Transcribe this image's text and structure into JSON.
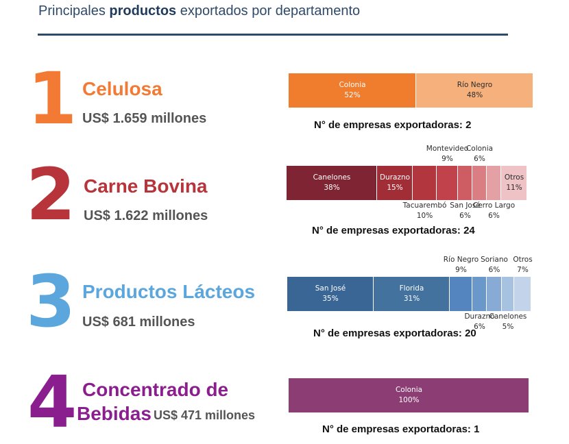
{
  "header": {
    "title_prefix": "Principales ",
    "title_bold": "productos",
    "title_suffix": " exportados por departamento"
  },
  "colors": {
    "header": "#2e4a6b",
    "p1": "#f37a35",
    "p2": "#b7343a",
    "p3": "#5ba6dd",
    "p4": "#8b1e8f"
  },
  "products": [
    {
      "rank": "1",
      "name": "Celulosa",
      "value": "US$ 1.659 millones",
      "count_label": "N° de empresas exportadoras: 2"
    },
    {
      "rank": "2",
      "name": "Carne Bovina",
      "value": "US$ 1.622 millones",
      "count_label": "N° de empresas exportadoras: 24"
    },
    {
      "rank": "3",
      "name": "Productos Lácteos",
      "value": "US$ 681 millones",
      "count_label": "N° de empresas exportadoras: 20"
    },
    {
      "rank": "4",
      "name_line1": "Concentrado de",
      "name_line2": "Bebidas",
      "value": "US$ 471 millones",
      "count_label": "N° de empresas exportadoras: 1"
    }
  ],
  "chart_data": [
    {
      "type": "bar",
      "stacked": true,
      "title": "Celulosa",
      "categories": [
        "Colonia",
        "Río Negro"
      ],
      "values": [
        52,
        48
      ],
      "labels": [
        "52%",
        "48%"
      ],
      "colors": [
        "#f07c2e",
        "#f5b07c"
      ]
    },
    {
      "type": "bar",
      "stacked": true,
      "title": "Carne Bovina",
      "categories": [
        "Canelones",
        "Durazno",
        "Tacuarembó",
        "Montevideo",
        "San José",
        "Colonia",
        "Cerro Largo",
        "Otros"
      ],
      "values": [
        38,
        15,
        10,
        9,
        6,
        6,
        6,
        11
      ],
      "labels": [
        "38%",
        "15%",
        "10%",
        "9%",
        "6%",
        "6%",
        "6%",
        "11%"
      ],
      "colors": [
        "#7f2432",
        "#a12d36",
        "#b1363e",
        "#c1424a",
        "#ce5d63",
        "#da7e84",
        "#e4a1a5",
        "#efc3c6"
      ]
    },
    {
      "type": "bar",
      "stacked": true,
      "title": "Productos Lácteos",
      "categories": [
        "San José",
        "Florida",
        "Río Negro",
        "Durazno",
        "Soriano",
        "Canelones",
        "Otros"
      ],
      "values": [
        35,
        31,
        9,
        6,
        6,
        5,
        7
      ],
      "labels": [
        "35%",
        "31%",
        "9%",
        "6%",
        "6%",
        "5%",
        "7%"
      ],
      "colors": [
        "#3a6696",
        "#43729f",
        "#5485bf",
        "#6a98cb",
        "#88abd5",
        "#a7c1e1",
        "#c3d4ea"
      ]
    },
    {
      "type": "bar",
      "stacked": true,
      "title": "Concentrado de Bebidas",
      "categories": [
        "Colonia"
      ],
      "values": [
        100
      ],
      "labels": [
        "100%"
      ],
      "colors": [
        "#8c3d73"
      ]
    }
  ]
}
